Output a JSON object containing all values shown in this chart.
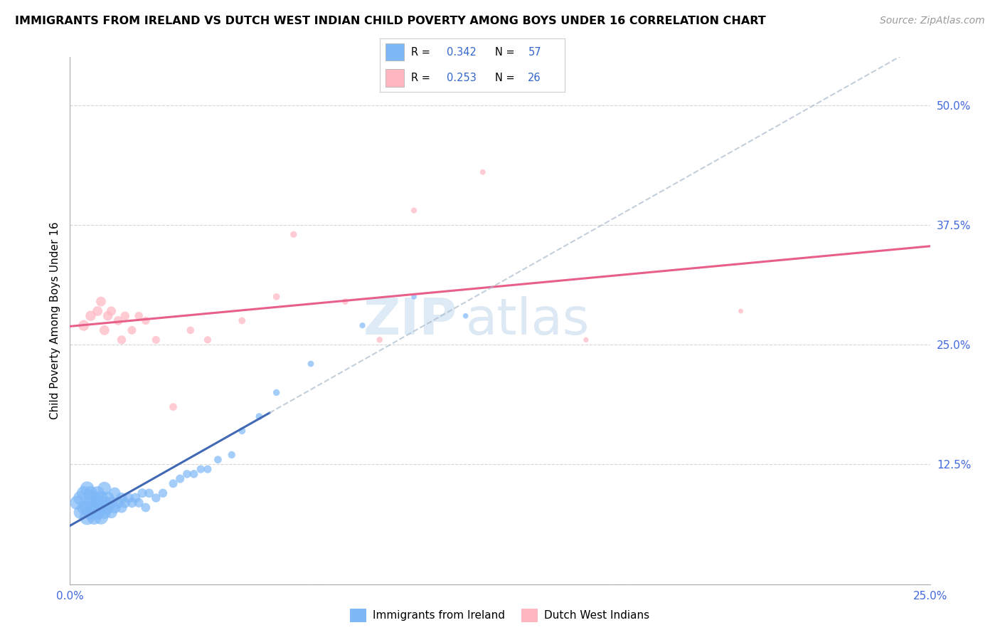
{
  "title": "IMMIGRANTS FROM IRELAND VS DUTCH WEST INDIAN CHILD POVERTY AMONG BOYS UNDER 16 CORRELATION CHART",
  "source": "Source: ZipAtlas.com",
  "ylabel": "Child Poverty Among Boys Under 16",
  "xlim": [
    0.0,
    0.25
  ],
  "ylim": [
    0.0,
    0.55
  ],
  "xtick_positions": [
    0.0,
    0.05,
    0.1,
    0.15,
    0.2,
    0.25
  ],
  "xticklabels": [
    "0.0%",
    "",
    "",
    "",
    "",
    "25.0%"
  ],
  "ytick_positions": [
    0.0,
    0.125,
    0.25,
    0.375,
    0.5
  ],
  "yticklabels": [
    "",
    "12.5%",
    "25.0%",
    "37.5%",
    "50.0%"
  ],
  "blue_R": "0.342",
  "blue_N": "57",
  "pink_R": "0.253",
  "pink_N": "26",
  "blue_color": "#7EB8F7",
  "pink_color": "#FFB6C1",
  "blue_line_color": "#4169B4",
  "pink_line_color": "#E8608A",
  "watermark_zip": "ZIP",
  "watermark_atlas": "atlas",
  "blue_scatter_x": [
    0.002,
    0.003,
    0.003,
    0.004,
    0.004,
    0.005,
    0.005,
    0.005,
    0.006,
    0.006,
    0.006,
    0.007,
    0.007,
    0.007,
    0.008,
    0.008,
    0.008,
    0.009,
    0.009,
    0.009,
    0.01,
    0.01,
    0.01,
    0.011,
    0.011,
    0.012,
    0.012,
    0.013,
    0.013,
    0.014,
    0.015,
    0.015,
    0.016,
    0.017,
    0.018,
    0.019,
    0.02,
    0.021,
    0.022,
    0.023,
    0.025,
    0.027,
    0.03,
    0.032,
    0.034,
    0.036,
    0.038,
    0.04,
    0.043,
    0.047,
    0.05,
    0.055,
    0.06,
    0.07,
    0.085,
    0.1,
    0.115
  ],
  "blue_scatter_y": [
    0.085,
    0.075,
    0.09,
    0.08,
    0.095,
    0.07,
    0.08,
    0.1,
    0.075,
    0.085,
    0.095,
    0.07,
    0.08,
    0.09,
    0.075,
    0.085,
    0.095,
    0.07,
    0.08,
    0.09,
    0.075,
    0.085,
    0.1,
    0.08,
    0.09,
    0.075,
    0.085,
    0.08,
    0.095,
    0.085,
    0.08,
    0.09,
    0.085,
    0.09,
    0.085,
    0.09,
    0.085,
    0.095,
    0.08,
    0.095,
    0.09,
    0.095,
    0.105,
    0.11,
    0.115,
    0.115,
    0.12,
    0.12,
    0.13,
    0.135,
    0.16,
    0.175,
    0.2,
    0.23,
    0.27,
    0.3,
    0.28
  ],
  "blue_scatter_sizes": [
    200,
    180,
    200,
    190,
    200,
    250,
    220,
    200,
    230,
    220,
    200,
    230,
    220,
    200,
    220,
    210,
    200,
    220,
    210,
    200,
    180,
    180,
    180,
    160,
    160,
    150,
    150,
    140,
    140,
    130,
    120,
    120,
    110,
    110,
    100,
    100,
    90,
    90,
    85,
    85,
    80,
    80,
    75,
    75,
    70,
    70,
    65,
    65,
    60,
    55,
    50,
    50,
    45,
    40,
    35,
    30,
    30
  ],
  "pink_scatter_x": [
    0.004,
    0.006,
    0.008,
    0.009,
    0.01,
    0.011,
    0.012,
    0.014,
    0.015,
    0.016,
    0.018,
    0.02,
    0.022,
    0.025,
    0.03,
    0.035,
    0.04,
    0.05,
    0.06,
    0.065,
    0.08,
    0.09,
    0.1,
    0.12,
    0.15,
    0.195
  ],
  "pink_scatter_y": [
    0.27,
    0.28,
    0.285,
    0.295,
    0.265,
    0.28,
    0.285,
    0.275,
    0.255,
    0.28,
    0.265,
    0.28,
    0.275,
    0.255,
    0.185,
    0.265,
    0.255,
    0.275,
    0.3,
    0.365,
    0.295,
    0.255,
    0.39,
    0.43,
    0.255,
    0.285
  ],
  "pink_scatter_sizes": [
    120,
    110,
    100,
    100,
    100,
    95,
    90,
    85,
    80,
    80,
    75,
    70,
    68,
    65,
    60,
    58,
    55,
    50,
    48,
    45,
    40,
    38,
    35,
    32,
    28,
    25
  ]
}
